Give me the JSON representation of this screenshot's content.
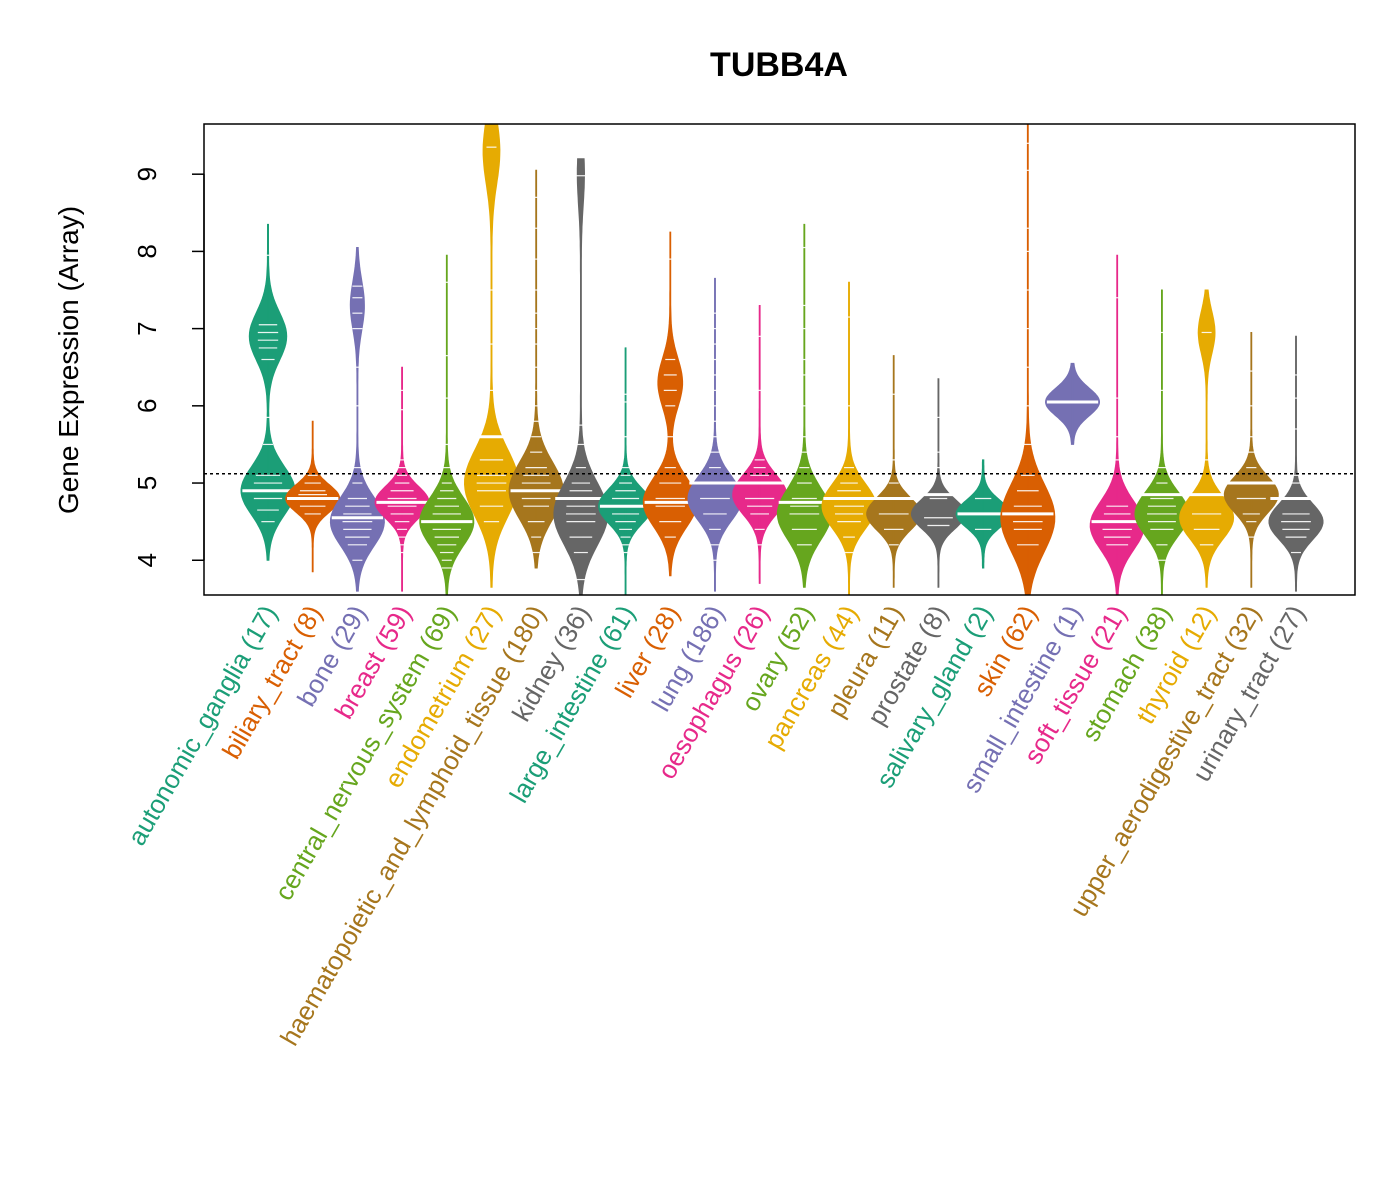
{
  "chart_data": {
    "type": "violin",
    "title": "TUBB4A",
    "ylabel": "Gene Expression (Array)",
    "xlabel": "",
    "ylim": [
      3.55,
      9.65
    ],
    "yticks": [
      4,
      5,
      6,
      7,
      8,
      9
    ],
    "reference_line": 5.12,
    "grid": false,
    "legend": "none",
    "categories": [
      {
        "name": "autonomic_ganglia",
        "n": 17,
        "label": "autonomic_ganglia (17)",
        "color": "#1B9E77",
        "median": 4.9,
        "min": 4.0,
        "max": 8.35,
        "modes": [
          [
            4.9,
            0.8
          ],
          [
            6.9,
            0.55
          ]
        ],
        "points": [
          4.5,
          4.65,
          4.8,
          4.9,
          5.0,
          5.1,
          5.5,
          5.85,
          6.6,
          6.75,
          6.85,
          6.95,
          7.05,
          7.95
        ]
      },
      {
        "name": "biliary_tract",
        "n": 8,
        "label": "biliary_tract (8)",
        "color": "#D95F02",
        "median": 4.8,
        "min": 3.85,
        "max": 5.8,
        "modes": [
          [
            4.8,
            1.0
          ]
        ],
        "points": [
          4.6,
          4.7,
          4.8,
          4.85,
          4.9,
          5.0,
          5.1
        ]
      },
      {
        "name": "bone",
        "n": 29,
        "label": "bone (29)",
        "color": "#7570B3",
        "median": 4.55,
        "min": 3.6,
        "max": 8.05,
        "modes": [
          [
            4.5,
            1.0
          ],
          [
            7.3,
            0.25
          ]
        ],
        "points": [
          4.0,
          4.2,
          4.3,
          4.4,
          4.5,
          4.6,
          4.7,
          4.8,
          5.0,
          5.2,
          6.0,
          6.5,
          7.0,
          7.2,
          7.4,
          7.55
        ]
      },
      {
        "name": "breast",
        "n": 59,
        "label": "breast (59)",
        "color": "#E7298A",
        "median": 4.75,
        "min": 3.6,
        "max": 6.5,
        "modes": [
          [
            4.75,
            1.0
          ]
        ],
        "points": [
          4.1,
          4.2,
          4.3,
          4.4,
          4.5,
          4.6,
          4.7,
          4.8,
          4.9,
          5.0,
          5.1,
          5.2,
          5.3,
          5.95,
          6.2
        ]
      },
      {
        "name": "central_nervous_system",
        "n": 69,
        "label": "central_nervous_system (69)",
        "color": "#66A61E",
        "median": 4.5,
        "min": 3.55,
        "max": 7.95,
        "modes": [
          [
            4.5,
            1.0
          ]
        ],
        "points": [
          3.9,
          4.0,
          4.1,
          4.2,
          4.3,
          4.4,
          4.5,
          4.6,
          4.7,
          4.8,
          4.9,
          5.0,
          5.2,
          5.5,
          6.1,
          6.65,
          7.6
        ]
      },
      {
        "name": "endometrium",
        "n": 27,
        "label": "endometrium (27)",
        "color": "#E6AB02",
        "median": 5.6,
        "min": 3.65,
        "max": 9.65,
        "modes": [
          [
            5.0,
            1.0
          ],
          [
            9.3,
            0.3
          ]
        ],
        "points": [
          4.5,
          4.7,
          4.9,
          5.0,
          5.1,
          5.3,
          5.6,
          6.2,
          6.8,
          7.5,
          9.35
        ]
      },
      {
        "name": "haematopoietic_and_lymphoid_tissue",
        "n": 180,
        "label": "haematopoietic_and_lymphoid_tissue (180)",
        "color": "#A6761D",
        "median": 4.9,
        "min": 3.9,
        "max": 9.05,
        "modes": [
          [
            4.9,
            1.0
          ]
        ],
        "points": [
          4.1,
          4.3,
          4.5,
          4.7,
          4.8,
          4.9,
          5.0,
          5.1,
          5.2,
          5.4,
          5.6,
          5.8,
          6.0,
          6.2,
          6.5,
          6.8,
          7.0,
          7.2,
          7.5,
          7.9,
          8.3,
          8.7
        ]
      },
      {
        "name": "kidney",
        "n": 36,
        "label": "kidney (36)",
        "color": "#666666",
        "median": 4.8,
        "min": 3.55,
        "max": 9.2,
        "modes": [
          [
            4.6,
            1.0
          ],
          [
            9.0,
            0.12
          ]
        ],
        "points": [
          3.75,
          4.1,
          4.3,
          4.5,
          4.6,
          4.7,
          4.8,
          4.9,
          5.0,
          5.2,
          5.5,
          5.75,
          8.98
        ]
      },
      {
        "name": "large_intestine",
        "n": 61,
        "label": "large_intestine (61)",
        "color": "#1B9E77",
        "median": 4.7,
        "min": 3.55,
        "max": 6.75,
        "modes": [
          [
            4.7,
            1.0
          ]
        ],
        "points": [
          4.1,
          4.2,
          4.3,
          4.4,
          4.5,
          4.6,
          4.7,
          4.8,
          4.9,
          5.0,
          5.1,
          5.2,
          5.6,
          6.05,
          6.15
        ]
      },
      {
        "name": "liver",
        "n": 28,
        "label": "liver (28)",
        "color": "#D95F02",
        "median": 4.75,
        "min": 3.8,
        "max": 8.25,
        "modes": [
          [
            4.75,
            1.0
          ],
          [
            6.3,
            0.45
          ]
        ],
        "points": [
          4.3,
          4.5,
          4.7,
          4.8,
          5.0,
          5.2,
          5.6,
          6.0,
          6.2,
          6.4,
          6.6,
          7.9
        ]
      },
      {
        "name": "lung",
        "n": 186,
        "label": "lung (186)",
        "color": "#7570B3",
        "median": 5.0,
        "min": 3.6,
        "max": 7.65,
        "modes": [
          [
            4.8,
            1.0
          ]
        ],
        "points": [
          4.0,
          4.2,
          4.4,
          4.6,
          4.8,
          5.0,
          5.2,
          5.4,
          5.6,
          5.8,
          6.0,
          6.2,
          6.4,
          6.6,
          6.8,
          7.0,
          7.2
        ]
      },
      {
        "name": "oesophagus",
        "n": 26,
        "label": "oesophagus (26)",
        "color": "#E7298A",
        "median": 5.0,
        "min": 3.7,
        "max": 7.3,
        "modes": [
          [
            4.85,
            1.0
          ]
        ],
        "points": [
          4.2,
          4.4,
          4.6,
          4.7,
          4.8,
          5.0,
          5.1,
          5.2,
          5.3,
          6.2,
          6.9
        ]
      },
      {
        "name": "ovary",
        "n": 52,
        "label": "ovary (52)",
        "color": "#66A61E",
        "median": 4.75,
        "min": 3.65,
        "max": 8.35,
        "modes": [
          [
            4.6,
            1.0
          ]
        ],
        "points": [
          4.2,
          4.4,
          4.6,
          4.7,
          4.8,
          5.0,
          5.2,
          5.4,
          5.6,
          6.0,
          6.4,
          6.6,
          7.0,
          7.3,
          8.05
        ]
      },
      {
        "name": "pancreas",
        "n": 44,
        "label": "pancreas (44)",
        "color": "#E6AB02",
        "median": 4.8,
        "min": 3.55,
        "max": 7.6,
        "modes": [
          [
            4.7,
            1.0
          ]
        ],
        "points": [
          4.1,
          4.3,
          4.5,
          4.6,
          4.7,
          4.8,
          4.9,
          5.0,
          5.2,
          6.0,
          7.15
        ]
      },
      {
        "name": "pleura",
        "n": 11,
        "label": "pleura (11)",
        "color": "#A6761D",
        "median": 4.8,
        "min": 3.65,
        "max": 6.65,
        "modes": [
          [
            4.6,
            1.0
          ]
        ],
        "points": [
          4.2,
          4.4,
          4.6,
          4.8,
          5.0,
          5.3,
          6.15
        ]
      },
      {
        "name": "prostate",
        "n": 8,
        "label": "prostate (8)",
        "color": "#666666",
        "median": 4.85,
        "min": 3.65,
        "max": 6.35,
        "modes": [
          [
            4.6,
            1.0
          ]
        ],
        "points": [
          4.45,
          4.55,
          4.8,
          5.2,
          5.4,
          5.85
        ]
      },
      {
        "name": "salivary_gland",
        "n": 2,
        "label": "salivary_gland (2)",
        "color": "#1B9E77",
        "median": 4.6,
        "min": 3.9,
        "max": 5.3,
        "modes": [
          [
            4.6,
            0.6
          ]
        ],
        "points": [
          4.4,
          4.8
        ]
      },
      {
        "name": "skin",
        "n": 62,
        "label": "skin (62)",
        "color": "#D95F02",
        "median": 4.6,
        "min": 3.55,
        "max": 9.65,
        "modes": [
          [
            4.55,
            1.0
          ]
        ],
        "points": [
          4.2,
          4.4,
          4.5,
          4.6,
          4.7,
          4.9,
          5.1,
          5.5,
          6.0,
          6.5,
          7.0,
          7.5,
          8.0,
          8.3,
          9.05,
          9.4
        ]
      },
      {
        "name": "small_intestine",
        "n": 1,
        "label": "small_intestine (1)",
        "color": "#7570B3",
        "median": 6.05,
        "min": 5.5,
        "max": 6.55,
        "modes": [
          [
            6.05,
            0.45
          ]
        ],
        "points": [
          6.05
        ]
      },
      {
        "name": "soft_tissue",
        "n": 21,
        "label": "soft_tissue (21)",
        "color": "#E7298A",
        "median": 4.5,
        "min": 3.55,
        "max": 7.95,
        "modes": [
          [
            4.45,
            1.0
          ]
        ],
        "points": [
          4.2,
          4.3,
          4.4,
          4.5,
          4.6,
          4.7,
          5.3,
          5.6,
          6.1,
          7.4
        ]
      },
      {
        "name": "stomach",
        "n": 38,
        "label": "stomach (38)",
        "color": "#66A61E",
        "median": 4.85,
        "min": 3.55,
        "max": 7.5,
        "modes": [
          [
            4.6,
            1.0
          ]
        ],
        "points": [
          4.0,
          4.2,
          4.4,
          4.5,
          4.6,
          4.7,
          4.8,
          5.0,
          5.2,
          6.2,
          6.95
        ]
      },
      {
        "name": "thyroid",
        "n": 12,
        "label": "thyroid (12)",
        "color": "#E6AB02",
        "median": 4.85,
        "min": 3.65,
        "max": 7.5,
        "modes": [
          [
            4.55,
            1.0
          ],
          [
            6.95,
            0.3
          ]
        ],
        "points": [
          4.2,
          4.4,
          4.6,
          4.85,
          5.3,
          6.95
        ]
      },
      {
        "name": "upper_aerodigestive_tract",
        "n": 32,
        "label": "upper_aerodigestive_tract (32)",
        "color": "#A6761D",
        "median": 5.0,
        "min": 3.65,
        "max": 6.95,
        "modes": [
          [
            4.85,
            1.0
          ]
        ],
        "points": [
          4.3,
          4.5,
          4.6,
          4.8,
          5.0,
          5.2,
          5.4,
          5.6,
          6.0,
          6.45
        ]
      },
      {
        "name": "urinary_tract",
        "n": 27,
        "label": "urinary_tract (27)",
        "color": "#666666",
        "median": 4.8,
        "min": 3.6,
        "max": 6.9,
        "modes": [
          [
            4.5,
            1.0
          ]
        ],
        "points": [
          4.1,
          4.3,
          4.4,
          4.5,
          4.6,
          4.8,
          5.0,
          5.1,
          5.7,
          6.1,
          6.4
        ]
      }
    ]
  }
}
